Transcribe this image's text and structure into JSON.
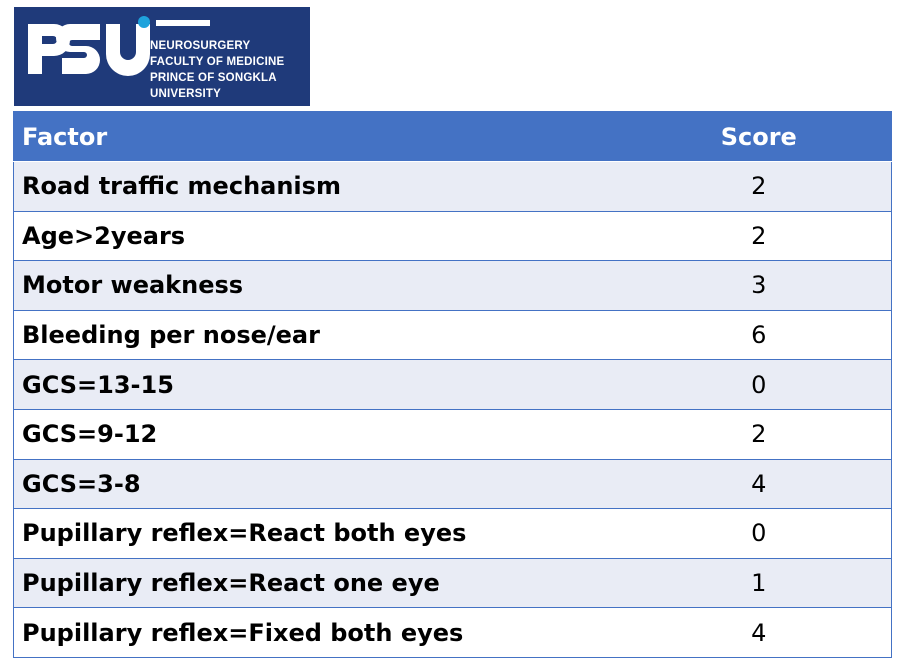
{
  "logo": {
    "wordmark": "PSU",
    "lines": [
      "NEUROSURGERY",
      "FACULTY OF MEDICINE",
      "PRINCE OF SONGKLA",
      "UNIVERSITY"
    ],
    "background_color": "#1f3a7a",
    "accent_color": "#1fa3dc"
  },
  "table": {
    "header_color": "#4472c4",
    "stripe_color": "#e9ecf5",
    "columns": [
      "Factor",
      "Score"
    ],
    "rows": [
      {
        "factor": "Road traffic mechanism",
        "score": "2"
      },
      {
        "factor": "Age>2years",
        "score": "2"
      },
      {
        "factor": "Motor weakness",
        "score": "3"
      },
      {
        "factor": "Bleeding per nose/ear",
        "score": "6"
      },
      {
        "factor": "GCS=13-15",
        "score": "0"
      },
      {
        "factor": "GCS=9-12",
        "score": "2"
      },
      {
        "factor": "GCS=3-8",
        "score": "4"
      },
      {
        "factor": "Pupillary reflex=React both eyes",
        "score": "0"
      },
      {
        "factor": "Pupillary reflex=React one eye",
        "score": "1"
      },
      {
        "factor": "Pupillary reflex=Fixed both eyes",
        "score": "4"
      }
    ]
  }
}
